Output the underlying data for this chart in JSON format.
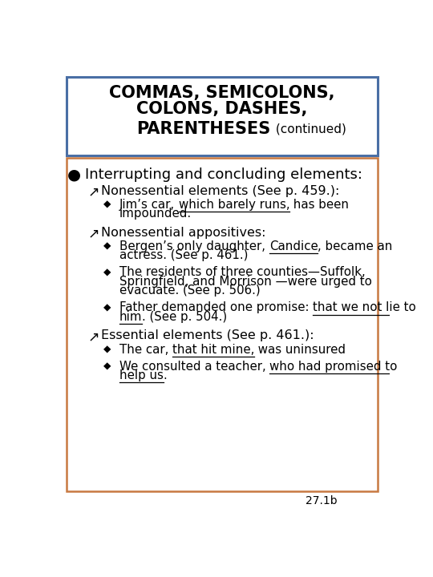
{
  "bg_color": "#ffffff",
  "title_box_border": "#4a6fa5",
  "content_box_border": "#c87941",
  "footer": "27.1b",
  "title_line1": "COMMAS, SEMICOLONS,",
  "title_line2": "COLONS, DASHES,",
  "title_line3_main": "PARENTHESES",
  "title_line3_cont": " (continued)",
  "title_fontsize": 15,
  "title_cont_fontsize": 11,
  "content_fontsize": 11,
  "level1_fontsize": 11,
  "level2_fontsize": 10.5,
  "items": [
    {
      "level": 0,
      "symbol": "●",
      "text": "Interrupting and concluding elements:",
      "parts": null
    },
    {
      "level": 1,
      "symbol": "↗",
      "text": "Nonessential elements (See p. 459.):",
      "parts": null
    },
    {
      "level": 2,
      "symbol": "◆",
      "text": null,
      "parts": [
        {
          "t": "Jim’s car, ",
          "u": false
        },
        {
          "t": "which barely runs,",
          "u": true
        },
        {
          "t": " has been",
          "u": false
        },
        {
          "t": "\nimpounded.",
          "u": false
        }
      ]
    },
    {
      "level": 1,
      "symbol": "↗",
      "text": "Nonessential appositives:",
      "parts": null
    },
    {
      "level": 2,
      "symbol": "◆",
      "text": null,
      "parts": [
        {
          "t": "Bergen’s only daughter, ",
          "u": false
        },
        {
          "t": "Candice",
          "u": true
        },
        {
          "t": ", became an",
          "u": false
        },
        {
          "t": "\nactress. (See p. 461.)",
          "u": false
        }
      ]
    },
    {
      "level": 2,
      "symbol": "◆",
      "text": null,
      "parts": [
        {
          "t": "The residents of three counties—Suffolk,",
          "u": false
        },
        {
          "t": "\nSpringfield, and Morrison —were urged to",
          "u": false
        },
        {
          "t": "\nevacuate. (See p. 506.)",
          "u": false
        }
      ]
    },
    {
      "level": 2,
      "symbol": "◆",
      "text": null,
      "parts": [
        {
          "t": "Father demanded one promise: ",
          "u": false
        },
        {
          "t": "that we not lie to",
          "u": true
        },
        {
          "t": "\n",
          "u": false
        },
        {
          "t": "him",
          "u": true
        },
        {
          "t": ". (See p. 504.)",
          "u": false
        }
      ]
    },
    {
      "level": 1,
      "symbol": "↗",
      "text": "Essential elements (See p. 461.):",
      "parts": null
    },
    {
      "level": 2,
      "symbol": "◆",
      "text": null,
      "parts": [
        {
          "t": "The car, ",
          "u": false
        },
        {
          "t": "that hit mine,",
          "u": true
        },
        {
          "t": " was uninsured",
          "u": false
        }
      ]
    },
    {
      "level": 2,
      "symbol": "◆",
      "text": null,
      "parts": [
        {
          "t": "We consulted a teacher, ",
          "u": false
        },
        {
          "t": "who had promised to",
          "u": true
        },
        {
          "t": "\n",
          "u": false
        },
        {
          "t": "help us",
          "u": true
        },
        {
          "t": ".",
          "u": false
        }
      ]
    }
  ]
}
